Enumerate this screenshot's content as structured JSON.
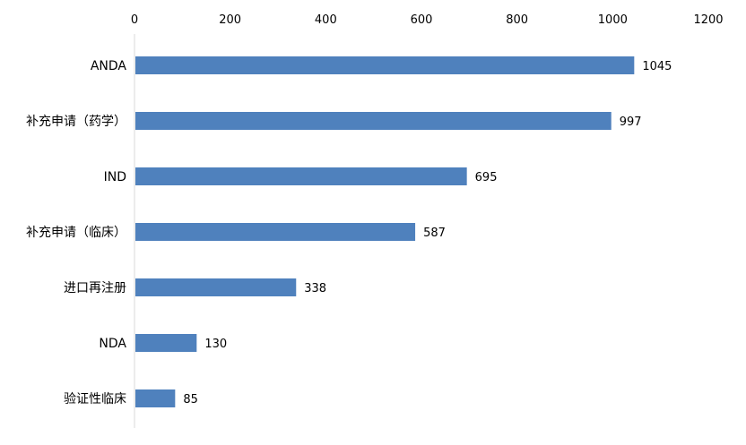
{
  "chart_data": {
    "type": "bar",
    "orientation": "horizontal",
    "categories": [
      "ANDA",
      "补充申请（药学）",
      "IND",
      "补充申请（临床）",
      "进口再注册",
      "NDA",
      "验证性临床"
    ],
    "values": [
      1045,
      997,
      695,
      587,
      338,
      130,
      85
    ],
    "title": "",
    "xlabel": "",
    "ylabel": "",
    "xlim": [
      0,
      1200
    ],
    "x_ticks": [
      0,
      200,
      400,
      600,
      800,
      1000,
      1200
    ],
    "x_axis_position": "top",
    "grid": false,
    "legend": "none",
    "data_labels": true,
    "bar_color": "#4F81BD",
    "axis_color": "#D9D9D9",
    "text_color": "#000000"
  }
}
